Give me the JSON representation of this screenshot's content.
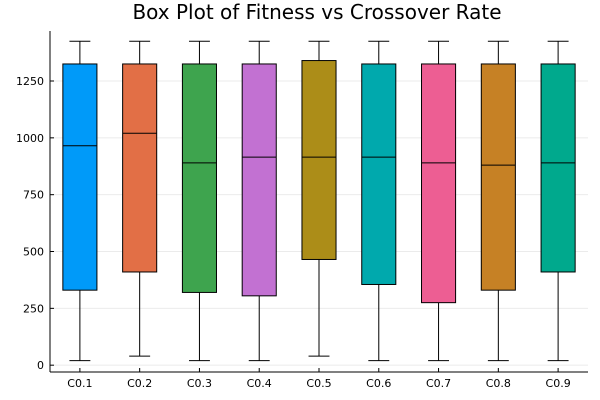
{
  "chart_data": {
    "type": "box",
    "title": "Box Plot of Fitness vs Crossover Rate",
    "xlabel": "",
    "ylabel": "",
    "ylim": [
      -30,
      1470
    ],
    "yticks": [
      0,
      250,
      500,
      750,
      1000,
      1250
    ],
    "grid": true,
    "legend": "none",
    "categories": [
      "C0.1",
      "C0.2",
      "C0.3",
      "C0.4",
      "C0.5",
      "C0.6",
      "C0.7",
      "C0.8",
      "C0.9"
    ],
    "series": [
      {
        "min": 20,
        "q1": 330,
        "median": 965,
        "q3": 1325,
        "max": 1425,
        "color": "#009af9"
      },
      {
        "min": 40,
        "q1": 410,
        "median": 1020,
        "q3": 1325,
        "max": 1425,
        "color": "#e26f46"
      },
      {
        "min": 20,
        "q1": 320,
        "median": 890,
        "q3": 1325,
        "max": 1425,
        "color": "#3ea44e"
      },
      {
        "min": 20,
        "q1": 305,
        "median": 915,
        "q3": 1325,
        "max": 1425,
        "color": "#c271d2"
      },
      {
        "min": 40,
        "q1": 465,
        "median": 915,
        "q3": 1340,
        "max": 1425,
        "color": "#ac8d18"
      },
      {
        "min": 20,
        "q1": 355,
        "median": 915,
        "q3": 1325,
        "max": 1425,
        "color": "#00a9ad"
      },
      {
        "min": 20,
        "q1": 275,
        "median": 890,
        "q3": 1325,
        "max": 1425,
        "color": "#ed5e93"
      },
      {
        "min": 20,
        "q1": 330,
        "median": 880,
        "q3": 1325,
        "max": 1425,
        "color": "#c68125"
      },
      {
        "min": 20,
        "q1": 410,
        "median": 890,
        "q3": 1325,
        "max": 1425,
        "color": "#00a98d"
      }
    ]
  }
}
